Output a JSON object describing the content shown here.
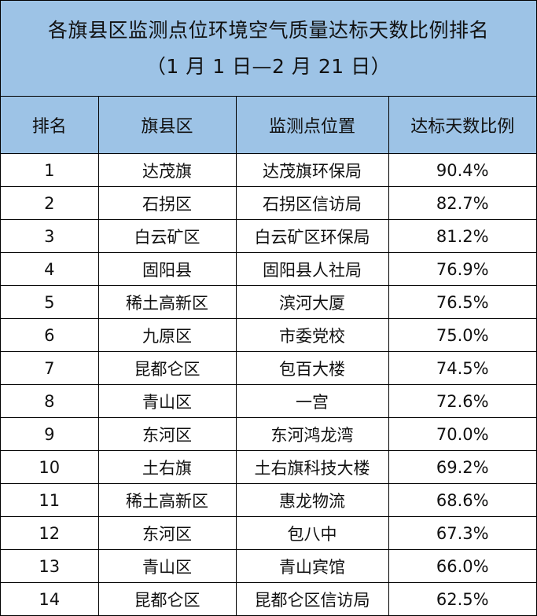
{
  "title": {
    "line1": "各旗县区监测点位环境空气质量达标天数比例排名",
    "line2": "（1 月 1 日—2 月 21 日）"
  },
  "table": {
    "headers": [
      "排名",
      "旗县区",
      "监测点位置",
      "达标天数比例"
    ],
    "rows": [
      [
        "1",
        "达茂旗",
        "达茂旗环保局",
        "90.4%"
      ],
      [
        "2",
        "石拐区",
        "石拐区信访局",
        "82.7%"
      ],
      [
        "3",
        "白云矿区",
        "白云矿区环保局",
        "81.2%"
      ],
      [
        "4",
        "固阳县",
        "固阳县人社局",
        "76.9%"
      ],
      [
        "5",
        "稀土高新区",
        "滨河大厦",
        "76.5%"
      ],
      [
        "6",
        "九原区",
        "市委党校",
        "75.0%"
      ],
      [
        "7",
        "昆都仑区",
        "包百大楼",
        "74.5%"
      ],
      [
        "8",
        "青山区",
        "一宫",
        "72.6%"
      ],
      [
        "9",
        "东河区",
        "东河鸿龙湾",
        "70.0%"
      ],
      [
        "10",
        "土右旗",
        "土右旗科技大楼",
        "69.2%"
      ],
      [
        "11",
        "稀土高新区",
        "惠龙物流",
        "68.6%"
      ],
      [
        "12",
        "东河区",
        "包八中",
        "67.3%"
      ],
      [
        "13",
        "青山区",
        "青山宾馆",
        "66.0%"
      ],
      [
        "14",
        "昆都仑区",
        "昆都仑区信访局",
        "62.5%"
      ]
    ]
  },
  "colors": {
    "header_bg": "#9dc3e6",
    "border": "#000000"
  }
}
